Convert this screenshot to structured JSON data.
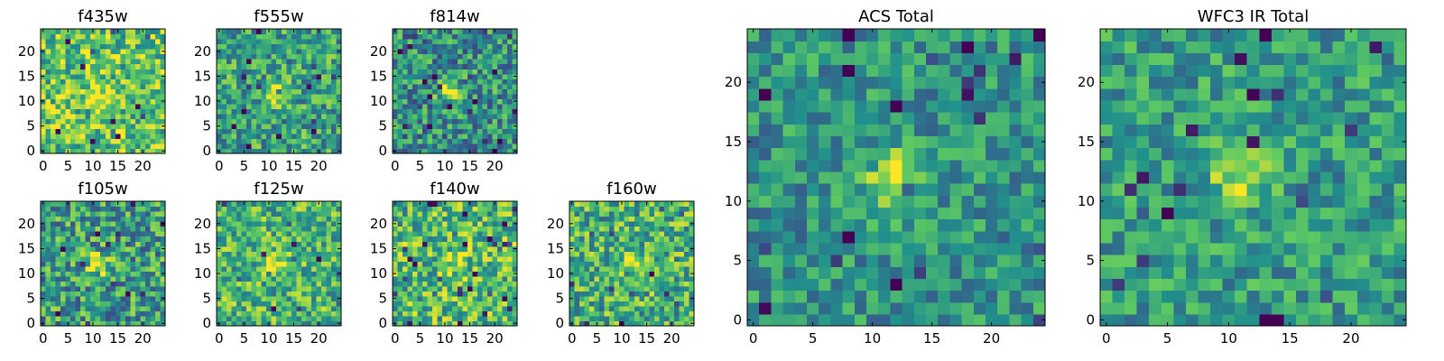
{
  "chart_data": [
    {
      "type": "heatmap",
      "title": "f435w",
      "grid": false,
      "xlim": [
        0,
        25
      ],
      "ylim": [
        0,
        25
      ],
      "xticks": [
        0,
        5,
        10,
        15,
        20
      ],
      "yticks": [
        0,
        5,
        10,
        15,
        20
      ],
      "source_center": [
        11,
        11
      ],
      "source_strength": 0.35,
      "noise": 0.3,
      "base": 0.72,
      "seed": 11,
      "palette": [
        "#440154",
        "#3b528b",
        "#21918c",
        "#5ec962",
        "#fde725"
      ]
    },
    {
      "type": "heatmap",
      "title": "f555w",
      "grid": false,
      "xlim": [
        0,
        25
      ],
      "ylim": [
        0,
        25
      ],
      "xticks": [
        0,
        5,
        10,
        15,
        20
      ],
      "yticks": [
        0,
        5,
        10,
        15,
        20
      ],
      "source_center": [
        11,
        12
      ],
      "source_strength": 0.4,
      "noise": 0.28,
      "base": 0.58,
      "seed": 23,
      "palette": [
        "#440154",
        "#3b528b",
        "#21918c",
        "#5ec962",
        "#fde725"
      ]
    },
    {
      "type": "heatmap",
      "title": "f814w",
      "grid": false,
      "xlim": [
        0,
        25
      ],
      "ylim": [
        0,
        25
      ],
      "xticks": [
        0,
        5,
        10,
        15,
        20
      ],
      "yticks": [
        0,
        5,
        10,
        15,
        20
      ],
      "source_center": [
        11,
        12
      ],
      "source_strength": 0.5,
      "noise": 0.3,
      "base": 0.5,
      "seed": 37,
      "palette": [
        "#440154",
        "#3b528b",
        "#21918c",
        "#5ec962",
        "#fde725"
      ]
    },
    {
      "type": "heatmap",
      "title": "f105w",
      "grid": false,
      "xlim": [
        0,
        25
      ],
      "ylim": [
        0,
        25
      ],
      "xticks": [
        0,
        5,
        10,
        15,
        20
      ],
      "yticks": [
        0,
        5,
        10,
        15,
        20
      ],
      "source_center": [
        11,
        12
      ],
      "source_strength": 0.4,
      "noise": 0.32,
      "base": 0.55,
      "seed": 41,
      "palette": [
        "#440154",
        "#3b528b",
        "#21918c",
        "#5ec962",
        "#fde725"
      ]
    },
    {
      "type": "heatmap",
      "title": "f125w",
      "grid": false,
      "xlim": [
        0,
        25
      ],
      "ylim": [
        0,
        25
      ],
      "xticks": [
        0,
        5,
        10,
        15,
        20
      ],
      "yticks": [
        0,
        5,
        10,
        15,
        20
      ],
      "source_center": [
        12,
        12
      ],
      "source_strength": 0.3,
      "noise": 0.28,
      "base": 0.66,
      "seed": 53,
      "palette": [
        "#440154",
        "#3b528b",
        "#21918c",
        "#5ec962",
        "#fde725"
      ]
    },
    {
      "type": "heatmap",
      "title": "f140w",
      "grid": false,
      "xlim": [
        0,
        25
      ],
      "ylim": [
        0,
        25
      ],
      "xticks": [
        0,
        5,
        10,
        15,
        20
      ],
      "yticks": [
        0,
        5,
        10,
        15,
        20
      ],
      "source_center": [
        12,
        12
      ],
      "source_strength": 0.25,
      "noise": 0.3,
      "base": 0.68,
      "seed": 67,
      "palette": [
        "#440154",
        "#3b528b",
        "#21918c",
        "#5ec962",
        "#fde725"
      ]
    },
    {
      "type": "heatmap",
      "title": "f160w",
      "grid": false,
      "xlim": [
        0,
        25
      ],
      "ylim": [
        0,
        25
      ],
      "xticks": [
        0,
        5,
        10,
        15,
        20
      ],
      "yticks": [
        0,
        5,
        10,
        15,
        20
      ],
      "source_center": [
        12,
        12
      ],
      "source_strength": 0.3,
      "noise": 0.3,
      "base": 0.64,
      "seed": 79,
      "palette": [
        "#440154",
        "#3b528b",
        "#21918c",
        "#5ec962",
        "#fde725"
      ]
    },
    {
      "type": "heatmap",
      "title": "ACS Total",
      "grid": false,
      "xlim": [
        0,
        25
      ],
      "ylim": [
        0,
        25
      ],
      "xticks": [
        0,
        5,
        10,
        15,
        20
      ],
      "yticks": [
        0,
        5,
        10,
        15,
        20
      ],
      "source_center": [
        12,
        12
      ],
      "source_strength": 0.45,
      "noise": 0.22,
      "base": 0.52,
      "seed": 89,
      "palette": [
        "#440154",
        "#3b528b",
        "#21918c",
        "#5ec962",
        "#fde725"
      ]
    },
    {
      "type": "heatmap",
      "title": "WFC3 IR Total",
      "grid": false,
      "xlim": [
        0,
        25
      ],
      "ylim": [
        0,
        25
      ],
      "xticks": [
        0,
        5,
        10,
        15,
        20
      ],
      "yticks": [
        0,
        5,
        10,
        15,
        20
      ],
      "source_center": [
        11,
        12
      ],
      "source_strength": 0.4,
      "noise": 0.22,
      "base": 0.55,
      "seed": 97,
      "palette": [
        "#440154",
        "#3b528b",
        "#21918c",
        "#5ec962",
        "#fde725"
      ]
    }
  ]
}
